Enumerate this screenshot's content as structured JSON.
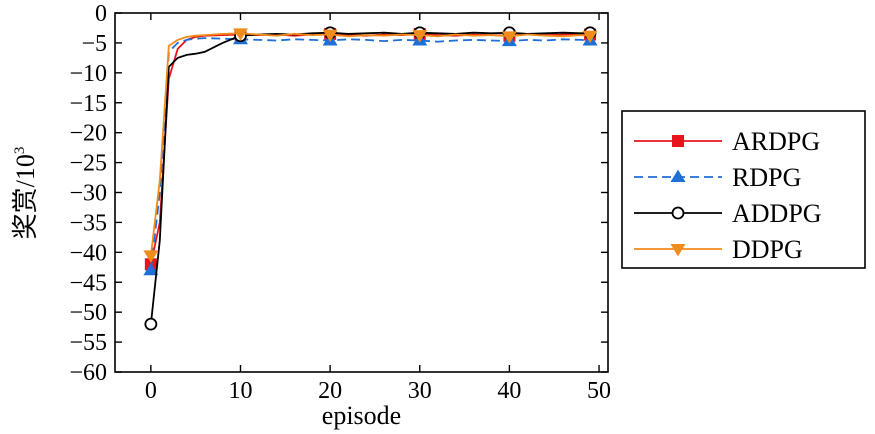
{
  "chart_data": {
    "type": "line",
    "xlabel": "episode",
    "ylabel": "奖赏/10",
    "ylabel_sup": "3",
    "xlim": [
      -4,
      51
    ],
    "ylim": [
      -60,
      0
    ],
    "xticks": [
      0,
      10,
      20,
      30,
      40,
      50
    ],
    "yticks": [
      0,
      -5,
      -10,
      -15,
      -20,
      -25,
      -30,
      -35,
      -40,
      -45,
      -50,
      -55,
      -60
    ],
    "grid": false,
    "legend_position": "right",
    "series": [
      {
        "name": "ARDPG",
        "color": "#e8141b",
        "marker": "square",
        "dashed": false,
        "x": [
          0,
          1,
          2,
          3,
          4,
          5,
          6,
          8,
          10,
          12,
          14,
          16,
          18,
          20,
          22,
          24,
          26,
          28,
          30,
          32,
          34,
          36,
          38,
          40,
          42,
          44,
          46,
          48,
          49
        ],
        "y": [
          -42,
          -35,
          -11,
          -6,
          -4.5,
          -4,
          -3.8,
          -3.7,
          -3.6,
          -3.7,
          -3.6,
          -3.8,
          -3.6,
          -3.5,
          -3.7,
          -3.8,
          -3.6,
          -3.7,
          -3.5,
          -3.7,
          -3.8,
          -3.6,
          -3.7,
          -3.8,
          -3.6,
          -3.7,
          -3.6,
          -3.5,
          -3.6
        ],
        "marker_x": [
          0,
          10,
          20,
          30,
          40,
          49
        ],
        "marker_y": [
          -42,
          -3.6,
          -3.5,
          -3.5,
          -3.8,
          -3.6
        ]
      },
      {
        "name": "RDPG",
        "color": "#1f6fd6",
        "marker": "triangle-up",
        "dashed": true,
        "x": [
          0,
          1,
          2,
          3,
          4,
          5,
          6,
          8,
          10,
          12,
          14,
          16,
          18,
          20,
          22,
          24,
          26,
          28,
          30,
          32,
          34,
          36,
          38,
          40,
          42,
          44,
          46,
          48,
          49
        ],
        "y": [
          -43,
          -30,
          -6.5,
          -5,
          -4.5,
          -4.3,
          -4.2,
          -4.3,
          -4.4,
          -4.5,
          -4.6,
          -4.4,
          -4.5,
          -4.6,
          -4.4,
          -4.5,
          -4.7,
          -4.5,
          -4.6,
          -4.8,
          -4.6,
          -4.5,
          -4.6,
          -4.7,
          -4.5,
          -4.6,
          -4.4,
          -4.5,
          -4.6
        ],
        "marker_x": [
          0,
          10,
          20,
          30,
          40,
          49
        ],
        "marker_y": [
          -43,
          -4.4,
          -4.6,
          -4.6,
          -4.7,
          -4.6
        ]
      },
      {
        "name": "ADDPG",
        "color": "#000000",
        "marker": "circle-open",
        "dashed": false,
        "x": [
          0,
          1,
          2,
          3,
          4,
          5,
          6,
          8,
          10,
          12,
          14,
          16,
          18,
          20,
          22,
          24,
          26,
          28,
          30,
          32,
          34,
          36,
          38,
          40,
          42,
          44,
          46,
          48,
          49
        ],
        "y": [
          -52,
          -38,
          -9,
          -7.5,
          -7,
          -6.8,
          -6.5,
          -5,
          -3.8,
          -3.6,
          -3.5,
          -3.6,
          -3.4,
          -3.3,
          -3.5,
          -3.4,
          -3.3,
          -3.5,
          -3.3,
          -3.4,
          -3.5,
          -3.3,
          -3.4,
          -3.3,
          -3.5,
          -3.4,
          -3.3,
          -3.4,
          -3.3
        ],
        "marker_x": [
          0,
          10,
          20,
          30,
          40,
          49
        ],
        "marker_y": [
          -52,
          -3.8,
          -3.3,
          -3.3,
          -3.3,
          -3.3
        ]
      },
      {
        "name": "DDPG",
        "color": "#f08c1c",
        "marker": "triangle-down",
        "dashed": false,
        "x": [
          0,
          1,
          2,
          3,
          4,
          5,
          6,
          8,
          10,
          12,
          14,
          16,
          18,
          20,
          22,
          24,
          26,
          28,
          30,
          32,
          34,
          36,
          38,
          40,
          42,
          44,
          46,
          48,
          49
        ],
        "y": [
          -40.5,
          -28,
          -5.5,
          -4.5,
          -4,
          -3.8,
          -3.7,
          -3.5,
          -3.4,
          -3.6,
          -3.8,
          -3.5,
          -3.7,
          -3.6,
          -3.9,
          -3.7,
          -3.8,
          -3.6,
          -3.7,
          -3.9,
          -3.6,
          -3.8,
          -3.7,
          -3.9,
          -3.6,
          -3.8,
          -3.9,
          -3.7,
          -3.8
        ],
        "marker_x": [
          0,
          10,
          20,
          30,
          40,
          49
        ],
        "marker_y": [
          -40.5,
          -3.4,
          -3.6,
          -3.7,
          -3.9,
          -3.8
        ]
      }
    ]
  }
}
